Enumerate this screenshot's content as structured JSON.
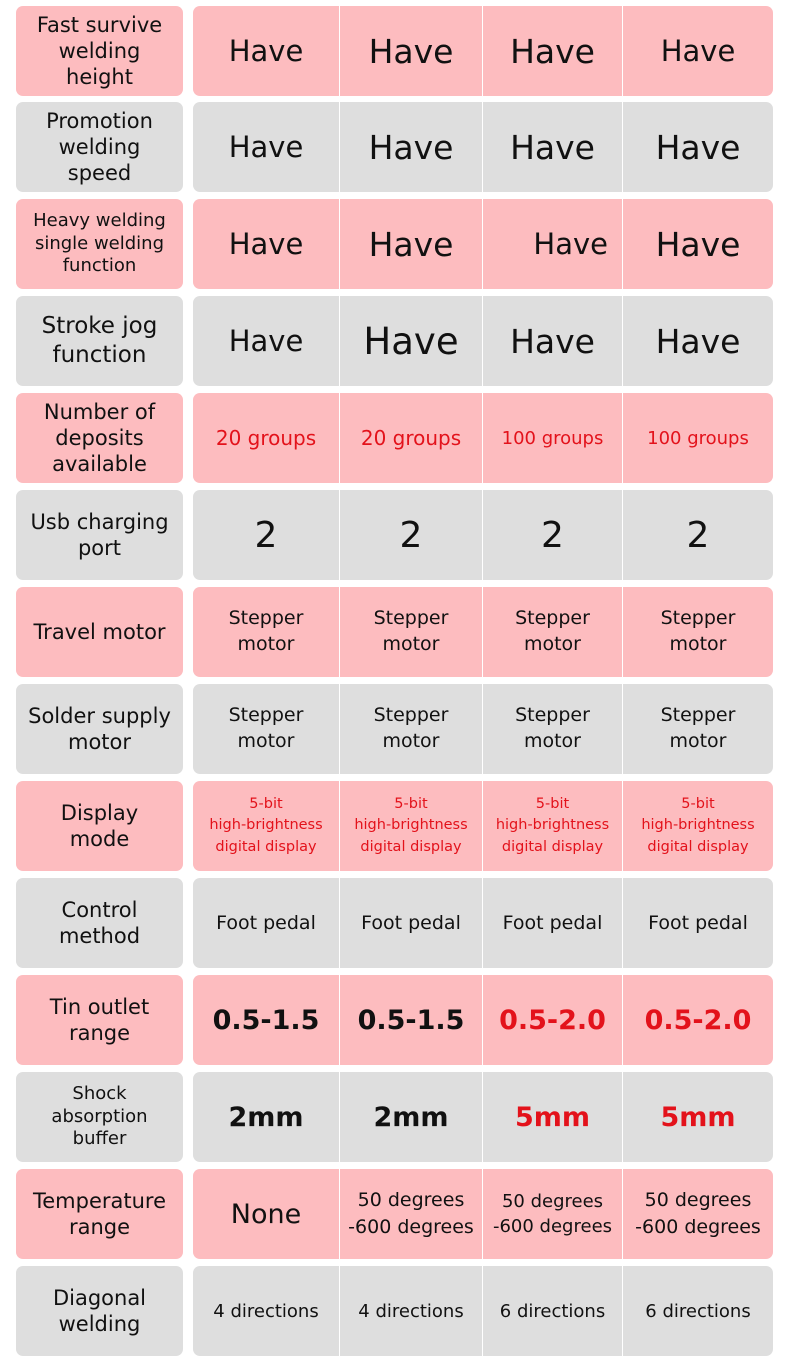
{
  "spec_table": {
    "rows": [
      {
        "label": "Fast survive\nwelding\nheight",
        "values": [
          "Have",
          "Have",
          "Have",
          "Have"
        ]
      },
      {
        "label": "Promotion\nwelding\nspeed",
        "values": [
          "Have",
          "Have",
          "Have",
          "Have"
        ]
      },
      {
        "label": "Heavy welding\nsingle welding\nfunction",
        "values": [
          "Have",
          "Have",
          "Have",
          "Have"
        ]
      },
      {
        "label": "Stroke jog\nfunction",
        "values": [
          "Have",
          "Have",
          "Have",
          "Have"
        ]
      },
      {
        "label": "Number of\ndeposits\navailable",
        "values": [
          "20 groups",
          "20 groups",
          "100 groups",
          "100 groups"
        ]
      },
      {
        "label": "Usb charging\nport",
        "values": [
          "2",
          "2",
          "2",
          "2"
        ]
      },
      {
        "label": "Travel motor",
        "values": [
          "Stepper\nmotor",
          "Stepper\nmotor",
          "Stepper\nmotor",
          "Stepper\nmotor"
        ]
      },
      {
        "label": "Solder supply\nmotor",
        "values": [
          "Stepper\nmotor",
          "Stepper\nmotor",
          "Stepper\nmotor",
          "Stepper\nmotor"
        ]
      },
      {
        "label": "Display\nmode",
        "values": [
          "5-bit\nhigh-brightness\ndigital display",
          "5-bit\nhigh-brightness\ndigital display",
          "5-bit\nhigh-brightness\ndigital display",
          "5-bit\nhigh-brightness\ndigital display"
        ]
      },
      {
        "label": "Control\nmethod",
        "values": [
          "Foot pedal",
          "Foot pedal",
          "Foot pedal",
          "Foot pedal"
        ]
      },
      {
        "label": "Tin outlet\nrange",
        "values": [
          "0.5-1.5",
          "0.5-1.5",
          "0.5-2.0",
          "0.5-2.0"
        ]
      },
      {
        "label": "Shock\nabsorption\nbuffer",
        "values": [
          "2mm",
          "2mm",
          "5mm",
          "5mm"
        ]
      },
      {
        "label": "Temperature\nrange",
        "values": [
          "None",
          "50 degrees\n-600 degrees",
          "50 degrees\n-600 degrees",
          "50 degrees\n-600 degrees"
        ]
      },
      {
        "label": "Diagonal\nwelding",
        "values": [
          "4 directions",
          "4 directions",
          "6 directions",
          "6 directions"
        ]
      }
    ]
  },
  "colors": {
    "pink_row": "#fdbcbf",
    "gray_row": "#dedede",
    "highlight_red": "#e3121b",
    "text": "#111111"
  }
}
